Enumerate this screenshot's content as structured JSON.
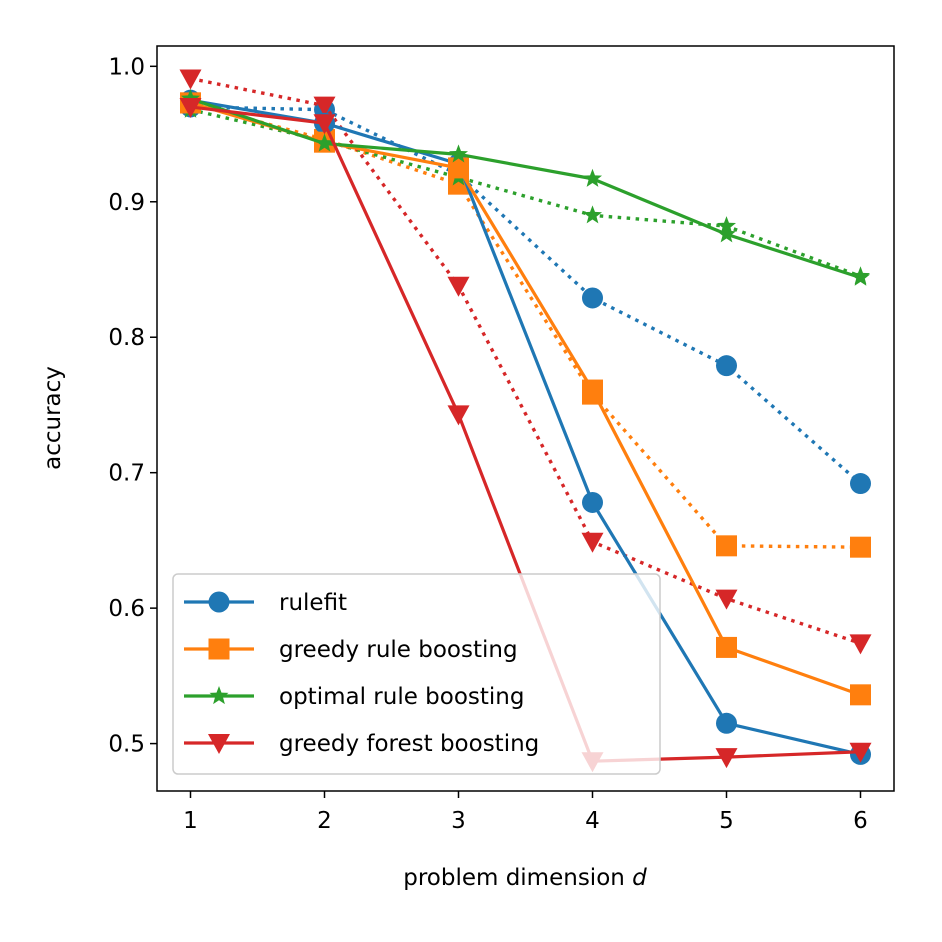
{
  "chart_data": {
    "type": "line",
    "title": "",
    "xlabel": "problem dimension",
    "xlabel_var": "d",
    "ylabel": "accuracy",
    "x": [
      1,
      2,
      3,
      4,
      5,
      6
    ],
    "xlim": [
      0.75,
      6.25
    ],
    "ylim": [
      0.465,
      1.015
    ],
    "xticks": [
      "1",
      "2",
      "3",
      "4",
      "5",
      "6"
    ],
    "yticks": [
      "0.5",
      "0.6",
      "0.7",
      "0.8",
      "0.9",
      "1.0"
    ],
    "ytick_values": [
      0.5,
      0.6,
      0.7,
      0.8,
      0.9,
      1.0
    ],
    "legend_position": "lower-left",
    "series": [
      {
        "name": "rulefit",
        "color": "#1f77b4",
        "marker": "circle",
        "style": "solid",
        "values": [
          0.975,
          0.958,
          0.928,
          0.678,
          0.515,
          0.492
        ]
      },
      {
        "name": "rulefit",
        "color": "#1f77b4",
        "marker": "circle",
        "style": "dotted",
        "in_legend": false,
        "values": [
          0.97,
          0.968,
          0.92,
          0.829,
          0.779,
          0.692
        ]
      },
      {
        "name": "greedy rule boosting",
        "color": "#ff7f0e",
        "marker": "square",
        "style": "solid",
        "values": [
          0.973,
          0.944,
          0.925,
          0.761,
          0.571,
          0.536
        ]
      },
      {
        "name": "greedy rule boosting",
        "color": "#ff7f0e",
        "marker": "square",
        "style": "dotted",
        "in_legend": false,
        "values": [
          0.973,
          0.946,
          0.913,
          0.758,
          0.646,
          0.645
        ]
      },
      {
        "name": "optimal rule boosting",
        "color": "#2ca02c",
        "marker": "star",
        "style": "solid",
        "values": [
          0.976,
          0.943,
          0.935,
          0.917,
          0.876,
          0.844
        ]
      },
      {
        "name": "optimal rule boosting",
        "color": "#2ca02c",
        "marker": "star",
        "style": "dotted",
        "in_legend": false,
        "values": [
          0.968,
          0.945,
          0.918,
          0.89,
          0.882,
          0.845
        ]
      },
      {
        "name": "greedy forest boosting",
        "color": "#d62728",
        "marker": "triangle-down",
        "style": "solid",
        "values": [
          0.97,
          0.958,
          0.743,
          0.487,
          0.49,
          0.494
        ]
      },
      {
        "name": "greedy forest boosting",
        "color": "#d62728",
        "marker": "triangle-down",
        "style": "dotted",
        "in_legend": false,
        "values": [
          0.991,
          0.971,
          0.838,
          0.649,
          0.607,
          0.574
        ]
      }
    ]
  }
}
